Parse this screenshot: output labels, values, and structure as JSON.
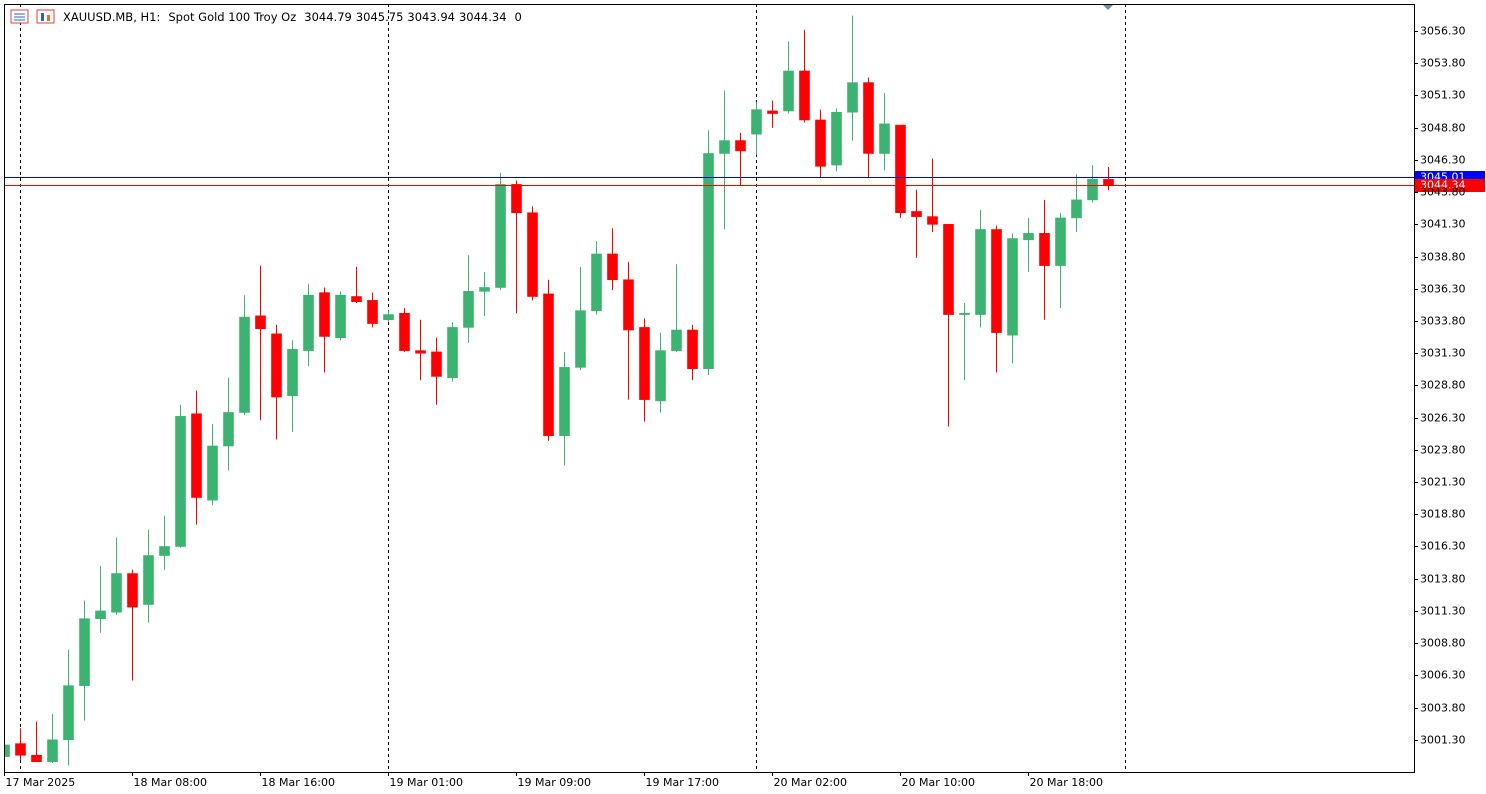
{
  "header": {
    "symbol": "XAUUSD.MB, H1:",
    "description": "Spot Gold 100 Troy Oz",
    "volume": 0
  },
  "chart_data": {
    "type": "candlestick",
    "categories": [
      "17 Mar 2025",
      null,
      null,
      null,
      null,
      null,
      null,
      null,
      "18 Mar 08:00",
      null,
      null,
      null,
      null,
      null,
      null,
      null,
      "18 Mar 16:00",
      null,
      null,
      null,
      null,
      null,
      null,
      null,
      "19 Mar 01:00",
      null,
      null,
      null,
      null,
      null,
      null,
      null,
      "19 Mar 09:00",
      null,
      null,
      null,
      null,
      null,
      null,
      null,
      "19 Mar 17:00",
      null,
      null,
      null,
      null,
      null,
      null,
      null,
      "20 Mar 02:00",
      null,
      null,
      null,
      null,
      null,
      null,
      null,
      "20 Mar 10:00",
      null,
      null,
      null,
      null,
      null,
      null,
      null,
      "20 Mar 18:00",
      null,
      null,
      null,
      null,
      null
    ],
    "open": [
      3000.0,
      3001.0,
      3000.1,
      2999.6,
      3001.3,
      3005.5,
      3010.7,
      3011.2,
      3014.2,
      3011.8,
      3015.6,
      3016.3,
      3026.6,
      3019.9,
      3024.1,
      3026.7,
      3034.2,
      3032.8,
      3028.0,
      3031.5,
      3036.0,
      3032.5,
      3035.7,
      3035.4,
      3033.9,
      3034.4,
      3031.5,
      3031.4,
      3029.4,
      3033.3,
      3036.1,
      3036.4,
      3044.4,
      3042.2,
      3035.9,
      3024.9,
      3030.2,
      3034.6,
      3039.0,
      3037.0,
      3033.3,
      3027.6,
      3031.5,
      3033.1,
      3030.1,
      3046.8,
      3047.8,
      3048.3,
      3050.1,
      3050.1,
      3053.2,
      3049.4,
      3045.9,
      3050.0,
      3052.3,
      3046.8,
      3049.0,
      3042.3,
      3041.9,
      3041.3,
      3034.3,
      3034.3,
      3040.9,
      3032.7,
      3040.1,
      3040.6,
      3038.1,
      3041.8,
      3043.2,
      3044.79
    ],
    "high": [
      3001.3,
      3002.2,
      3002.7,
      3003.3,
      3008.3,
      3012.1,
      3014.8,
      3017.0,
      3014.5,
      3017.6,
      3018.7,
      3027.3,
      3028.4,
      3025.8,
      3029.4,
      3035.8,
      3038.1,
      3033.5,
      3032.3,
      3036.7,
      3036.4,
      3036.1,
      3038.0,
      3036.0,
      3034.6,
      3034.8,
      3033.9,
      3032.5,
      3033.7,
      3038.9,
      3037.6,
      3045.3,
      3044.7,
      3042.7,
      3037.0,
      3031.4,
      3038.0,
      3040.0,
      3041.0,
      3038.4,
      3034.0,
      3032.9,
      3038.2,
      3033.5,
      3048.6,
      3051.7,
      3048.4,
      3050.8,
      3050.9,
      3055.5,
      3056.4,
      3050.2,
      3050.3,
      3057.5,
      3052.7,
      3051.5,
      3049.0,
      3044.0,
      3046.4,
      3041.3,
      3035.2,
      3042.4,
      3041.2,
      3040.6,
      3041.8,
      3043.2,
      3042.2,
      3045.2,
      3045.9,
      3045.75
    ],
    "low": [
      2999.9,
      2999.7,
      2999.6,
      2999.5,
      2999.3,
      3002.8,
      3009.6,
      3011.0,
      3005.9,
      3010.4,
      3014.5,
      3016.2,
      3018.0,
      3019.5,
      3022.2,
      3026.5,
      3026.1,
      3024.6,
      3025.2,
      3030.3,
      3029.8,
      3032.3,
      3035.2,
      3033.3,
      3033.7,
      3031.4,
      3029.2,
      3027.3,
      3029.1,
      3032.1,
      3034.2,
      3036.2,
      3034.4,
      3035.4,
      3024.5,
      3022.6,
      3030.0,
      3034.3,
      3036.2,
      3027.7,
      3026.0,
      3026.7,
      3031.4,
      3029.2,
      3029.6,
      3040.9,
      3044.3,
      3046.7,
      3048.8,
      3049.9,
      3049.2,
      3044.9,
      3045.4,
      3047.8,
      3044.9,
      3045.5,
      3041.8,
      3038.7,
      3040.7,
      3025.6,
      3029.2,
      3033.3,
      3029.8,
      3030.5,
      3037.6,
      3033.9,
      3034.8,
      3040.7,
      3043.0,
      3043.94
    ],
    "close": [
      3000.9,
      3000.1,
      2999.6,
      3001.3,
      3005.5,
      3010.7,
      3011.3,
      3014.2,
      3011.6,
      3015.6,
      3016.3,
      3026.4,
      3020.1,
      3024.1,
      3026.7,
      3034.1,
      3033.2,
      3027.9,
      3031.6,
      3035.8,
      3032.6,
      3035.8,
      3035.3,
      3033.6,
      3034.3,
      3031.5,
      3031.3,
      3029.5,
      3033.3,
      3036.1,
      3036.4,
      3044.4,
      3042.2,
      3035.7,
      3024.9,
      3030.2,
      3034.6,
      3039.0,
      3037.0,
      3033.1,
      3027.7,
      3031.5,
      3033.1,
      3030.1,
      3046.8,
      3047.8,
      3047.0,
      3050.2,
      3049.9,
      3053.2,
      3049.4,
      3045.8,
      3050.0,
      3052.3,
      3046.8,
      3049.1,
      3042.2,
      3041.9,
      3041.3,
      3034.3,
      3034.4,
      3040.9,
      3032.9,
      3040.2,
      3040.6,
      3038.1,
      3041.8,
      3043.2,
      3044.8,
      3044.34
    ],
    "up_color": "#3cb371",
    "down_color": "#ff0000",
    "ylim": [
      2998.8,
      3058.4
    ],
    "yticks": [
      {
        "value": 3001.3,
        "label": "3001.30"
      },
      {
        "value": 3003.8,
        "label": "3003.80"
      },
      {
        "value": 3006.3,
        "label": "3006.30"
      },
      {
        "value": 3008.8,
        "label": "3008.80"
      },
      {
        "value": 3011.3,
        "label": "3011.30"
      },
      {
        "value": 3013.8,
        "label": "3013.80"
      },
      {
        "value": 3016.3,
        "label": "3016.30"
      },
      {
        "value": 3018.8,
        "label": "3018.80"
      },
      {
        "value": 3021.3,
        "label": "3021.30"
      },
      {
        "value": 3023.8,
        "label": "3023.80"
      },
      {
        "value": 3026.3,
        "label": "3026.30"
      },
      {
        "value": 3028.8,
        "label": "3028.80"
      },
      {
        "value": 3031.3,
        "label": "3031.30"
      },
      {
        "value": 3033.8,
        "label": "3033.80"
      },
      {
        "value": 3036.3,
        "label": "3036.30"
      },
      {
        "value": 3038.8,
        "label": "3038.80"
      },
      {
        "value": 3041.3,
        "label": "3041.30"
      },
      {
        "value": 3043.8,
        "label": "3043.80"
      },
      {
        "value": 3046.3,
        "label": "3046.30"
      },
      {
        "value": 3048.8,
        "label": "3048.80"
      },
      {
        "value": 3051.3,
        "label": "3051.30"
      },
      {
        "value": 3053.8,
        "label": "3053.80"
      },
      {
        "value": 3056.3,
        "label": "3056.30"
      }
    ],
    "price_lines": [
      {
        "value": 3045.01,
        "color": "#0000ff"
      },
      {
        "value": 3044.34,
        "color": "#ff0000"
      }
    ],
    "grid": false
  }
}
